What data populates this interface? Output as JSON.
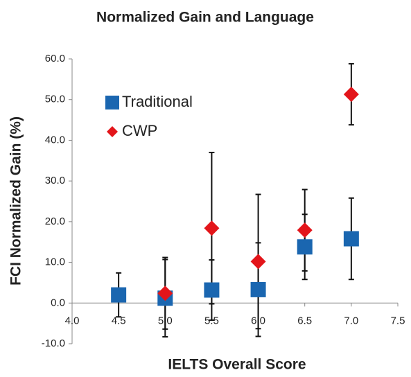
{
  "chart_data": {
    "type": "scatter",
    "title": "Normalized Gain and Language",
    "xlabel": "IELTS Overall Score",
    "ylabel": "FCI Normalized Gain (%)",
    "xlim": [
      4.0,
      7.5
    ],
    "ylim": [
      -10,
      60
    ],
    "xticks": [
      {
        "value": 4.0,
        "label": "4.0"
      },
      {
        "value": 4.5,
        "label": "4.5"
      },
      {
        "value": 5.0,
        "label": "5.0"
      },
      {
        "value": 5.5,
        "label": "5.5"
      },
      {
        "value": 6.0,
        "label": "6.0"
      },
      {
        "value": 6.5,
        "label": "6.5"
      },
      {
        "value": 7.0,
        "label": "7.0"
      },
      {
        "value": 7.5,
        "label": "7.5"
      }
    ],
    "yticks": [
      {
        "value": -10,
        "label": "-10.0"
      },
      {
        "value": 0,
        "label": "0.0"
      },
      {
        "value": 10,
        "label": "10.0"
      },
      {
        "value": 20,
        "label": "20.0"
      },
      {
        "value": 30,
        "label": "30.0"
      },
      {
        "value": 40,
        "label": "40.0"
      },
      {
        "value": 50,
        "label": "50.0"
      },
      {
        "value": 60,
        "label": "60.0"
      }
    ],
    "legend": "upper left",
    "series": [
      {
        "name": "Traditional",
        "color": "#1a66b0",
        "marker": "square",
        "x": [
          4.5,
          5.0,
          5.5,
          6.0,
          6.5,
          7.0
        ],
        "values": [
          2.0,
          1.2,
          3.2,
          3.3,
          13.8,
          15.8
        ],
        "errors": [
          5.4,
          9.5,
          7.4,
          11.5,
          8.0,
          10.0
        ]
      },
      {
        "name": "CWP",
        "color": "#e3151a",
        "marker": "diamond",
        "x": [
          5.0,
          5.5,
          6.0,
          6.5,
          7.0
        ],
        "values": [
          2.4,
          18.4,
          10.2,
          17.9,
          51.3
        ],
        "errors": [
          8.8,
          18.6,
          16.5,
          10.0,
          7.5
        ]
      }
    ]
  }
}
